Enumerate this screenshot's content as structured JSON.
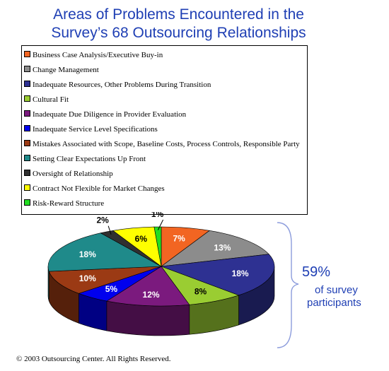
{
  "chart_data": {
    "type": "pie",
    "title_line1": "Areas of Problems Encountered in the",
    "title_line2": "Survey’s  68 Outsourcing Relationships",
    "series": [
      {
        "name": "Business Case Analysis/Executive Buy-in",
        "value": 7,
        "label": "7%",
        "color": "#f26522"
      },
      {
        "name": "Change Management",
        "value": 13,
        "label": "13%",
        "color": "#8c8c8c"
      },
      {
        "name": "Inadequate Resources, Other Problems During Transition",
        "value": 18,
        "label": "18%",
        "color": "#2e3192"
      },
      {
        "name": "Cultural Fit",
        "value": 8,
        "label": "8%",
        "color": "#9acd32"
      },
      {
        "name": "Inadequate Due Diligence in Provider Evaluation",
        "value": 12,
        "label": "12%",
        "color": "#7b1a7e"
      },
      {
        "name": "Inadequate Service Level Specifications",
        "value": 5,
        "label": "5%",
        "color": "#0000ee"
      },
      {
        "name": "Mistakes Associated with Scope, Baseline Costs, Process Controls, Responsible Party",
        "value": 10,
        "label": "10%",
        "color": "#9b3a14"
      },
      {
        "name": "Setting Clear Expectations Up Front",
        "value": 18,
        "label": "18%",
        "color": "#1f8a8a"
      },
      {
        "name": "Oversight of Relationship",
        "value": 2,
        "label": "2%",
        "color": "#303030"
      },
      {
        "name": "Contract Not Flexible for Market Changes",
        "value": 6,
        "label": "6%",
        "color": "#ffff00"
      },
      {
        "name": "Risk-Reward Structure",
        "value": 1,
        "label": "1%",
        "color": "#22dd22"
      }
    ],
    "legend_placement": "top"
  },
  "callout": {
    "percent": "59%",
    "line1": "of survey",
    "line2": "participants"
  },
  "footer": {
    "copyright": "© 2003 Outsourcing Center. All Rights Reserved."
  }
}
